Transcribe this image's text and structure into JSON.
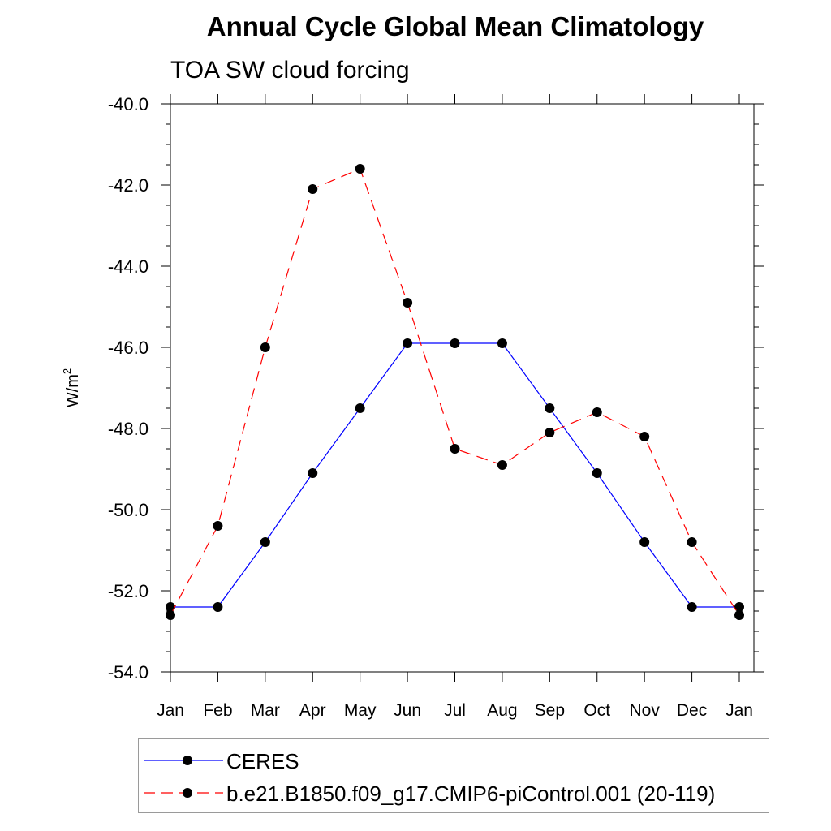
{
  "title": "Annual Cycle Global Mean Climatology",
  "subtitle": "TOA SW cloud forcing",
  "colors": {
    "ceres": "#0000ff",
    "model": "#ff0000",
    "marker": "#000000"
  },
  "chart_data": {
    "type": "line",
    "title": "Annual Cycle Global Mean Climatology",
    "subtitle": "TOA SW cloud forcing",
    "xlabel": "",
    "ylabel": "W/m",
    "ylabel_sup": "2",
    "categories": [
      "Jan",
      "Feb",
      "Mar",
      "Apr",
      "May",
      "Jun",
      "Jul",
      "Aug",
      "Sep",
      "Oct",
      "Nov",
      "Dec",
      "Jan"
    ],
    "ylim": [
      -54.0,
      -40.0
    ],
    "yticks": [
      "-40.0",
      "-42.0",
      "-44.0",
      "-46.0",
      "-48.0",
      "-50.0",
      "-52.0",
      "-54.0"
    ],
    "grid": false,
    "legend_position": "bottom",
    "series": [
      {
        "name": "CERES",
        "style": "solid",
        "color": "#0000ff",
        "values": [
          -52.4,
          -52.4,
          -50.8,
          -49.1,
          -47.5,
          -45.9,
          -45.9,
          -45.9,
          -47.5,
          -49.1,
          -50.8,
          -52.4,
          -52.4
        ]
      },
      {
        "name": "b.e21.B1850.f09_g17.CMIP6-piControl.001 (20-119)",
        "style": "dashed",
        "color": "#ff0000",
        "values": [
          -52.6,
          -50.4,
          -46.0,
          -42.1,
          -41.6,
          -44.9,
          -48.5,
          -48.9,
          -48.1,
          -47.6,
          -48.2,
          -50.8,
          -52.6
        ]
      }
    ]
  },
  "legend": {
    "items": [
      {
        "label": "CERES"
      },
      {
        "label": "b.e21.B1850.f09_g17.CMIP6-piControl.001 (20-119)"
      }
    ]
  }
}
